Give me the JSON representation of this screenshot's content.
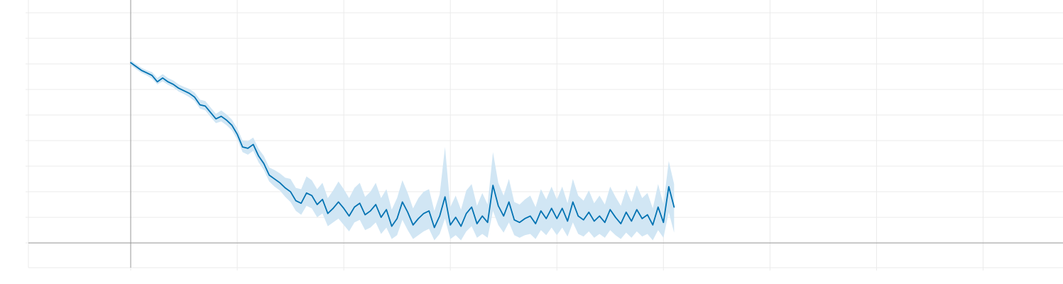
{
  "chart_data": {
    "type": "line",
    "title": "",
    "xlabel": "",
    "ylabel": "",
    "grid": true,
    "legend": "none",
    "xlim": [
      -0.96,
      8.75
    ],
    "ylim": [
      -0.97,
      9.5
    ],
    "x_gridlines": [
      0,
      1,
      2,
      3,
      4,
      5,
      6,
      7,
      8
    ],
    "y_gridlines": [
      0,
      1,
      2,
      3,
      4,
      5,
      6,
      7,
      8,
      9
    ],
    "series": [
      {
        "x": [
          0.0,
          0.05,
          0.1,
          0.15,
          0.2,
          0.25,
          0.3,
          0.35,
          0.4,
          0.45,
          0.5,
          0.55,
          0.6,
          0.65,
          0.7,
          0.75,
          0.8,
          0.85,
          0.9,
          0.95,
          1.0,
          1.05,
          1.1,
          1.15,
          1.2,
          1.25,
          1.3,
          1.35,
          1.4,
          1.45,
          1.5,
          1.55,
          1.6,
          1.65,
          1.7,
          1.75,
          1.8,
          1.85,
          1.9,
          1.95,
          2.0,
          2.05,
          2.1,
          2.15,
          2.2,
          2.25,
          2.3,
          2.35,
          2.4,
          2.45,
          2.5,
          2.55,
          2.6,
          2.65,
          2.7,
          2.75,
          2.8,
          2.85,
          2.9,
          2.95,
          3.0,
          3.05,
          3.1,
          3.15,
          3.2,
          3.25,
          3.3,
          3.35,
          3.4,
          3.45,
          3.5,
          3.55,
          3.6,
          3.65,
          3.7,
          3.75,
          3.8,
          3.85,
          3.9,
          3.95,
          4.0,
          4.05,
          4.1,
          4.15,
          4.2,
          4.25,
          4.3,
          4.35,
          4.4,
          4.45,
          4.5,
          4.55,
          4.6,
          4.65,
          4.7,
          4.75,
          4.8,
          4.85,
          4.9,
          4.95,
          5.0,
          5.05,
          5.1
        ],
        "values": [
          7.05,
          6.9,
          6.75,
          6.65,
          6.55,
          6.3,
          6.45,
          6.3,
          6.2,
          6.05,
          5.95,
          5.85,
          5.7,
          5.4,
          5.35,
          5.1,
          4.85,
          4.95,
          4.8,
          4.6,
          4.25,
          3.75,
          3.7,
          3.85,
          3.4,
          3.1,
          2.65,
          2.5,
          2.35,
          2.15,
          2.0,
          1.65,
          1.55,
          1.95,
          1.85,
          1.5,
          1.7,
          1.15,
          1.35,
          1.6,
          1.35,
          1.05,
          1.4,
          1.55,
          1.1,
          1.25,
          1.5,
          1.0,
          1.3,
          0.65,
          0.95,
          1.6,
          1.2,
          0.7,
          0.95,
          1.15,
          1.25,
          0.6,
          1.05,
          1.8,
          0.7,
          1.0,
          0.65,
          1.15,
          1.4,
          0.75,
          1.05,
          0.8,
          2.25,
          1.45,
          1.05,
          1.6,
          0.9,
          0.8,
          0.95,
          1.05,
          0.75,
          1.25,
          0.95,
          1.35,
          0.95,
          1.35,
          0.85,
          1.6,
          1.05,
          0.9,
          1.2,
          0.85,
          1.05,
          0.8,
          1.3,
          1.0,
          0.75,
          1.2,
          0.85,
          1.3,
          0.95,
          1.1,
          0.7,
          1.4,
          0.8,
          2.2,
          1.4
        ],
        "lower": [
          6.95,
          6.8,
          6.65,
          6.55,
          6.42,
          6.2,
          6.32,
          6.18,
          6.08,
          5.92,
          5.82,
          5.7,
          5.55,
          5.25,
          5.18,
          4.92,
          4.68,
          4.75,
          4.6,
          4.4,
          4.05,
          3.55,
          3.45,
          3.6,
          3.15,
          2.85,
          2.4,
          2.2,
          2.05,
          1.8,
          1.6,
          1.25,
          1.1,
          1.45,
          1.35,
          1.0,
          1.15,
          0.65,
          0.8,
          0.95,
          0.7,
          0.45,
          0.8,
          0.9,
          0.5,
          0.6,
          0.8,
          0.35,
          0.6,
          0.15,
          0.3,
          0.9,
          0.5,
          0.15,
          0.3,
          0.45,
          0.55,
          0.1,
          0.35,
          0.95,
          0.15,
          0.3,
          0.1,
          0.45,
          0.65,
          0.2,
          0.35,
          0.2,
          1.25,
          0.7,
          0.4,
          0.8,
          0.3,
          0.2,
          0.3,
          0.35,
          0.15,
          0.5,
          0.3,
          0.6,
          0.3,
          0.6,
          0.25,
          0.8,
          0.35,
          0.25,
          0.45,
          0.2,
          0.35,
          0.2,
          0.5,
          0.3,
          0.15,
          0.4,
          0.2,
          0.45,
          0.25,
          0.35,
          0.1,
          0.5,
          0.2,
          1.2,
          0.4
        ],
        "upper": [
          7.15,
          7.0,
          6.85,
          6.75,
          6.68,
          6.45,
          6.6,
          6.45,
          6.35,
          6.2,
          6.1,
          6.02,
          5.88,
          5.6,
          5.55,
          5.3,
          5.05,
          5.18,
          5.02,
          4.82,
          4.48,
          4.0,
          3.98,
          4.12,
          3.68,
          3.4,
          2.95,
          2.85,
          2.72,
          2.55,
          2.5,
          2.15,
          2.1,
          2.6,
          2.45,
          2.1,
          2.35,
          1.75,
          2.05,
          2.4,
          2.1,
          1.75,
          2.15,
          2.35,
          1.8,
          2.0,
          2.35,
          1.75,
          2.1,
          1.3,
          1.75,
          2.45,
          1.95,
          1.35,
          1.75,
          2.0,
          2.1,
          1.25,
          1.9,
          3.75,
          1.4,
          1.85,
          1.3,
          2.05,
          2.3,
          1.45,
          1.95,
          1.5,
          3.55,
          2.35,
          1.85,
          2.5,
          1.6,
          1.5,
          1.7,
          1.85,
          1.4,
          2.1,
          1.7,
          2.2,
          1.7,
          2.2,
          1.55,
          2.5,
          1.85,
          1.65,
          2.05,
          1.55,
          1.85,
          1.5,
          2.2,
          1.8,
          1.45,
          2.1,
          1.6,
          2.25,
          1.75,
          1.95,
          1.35,
          2.3,
          1.5,
          3.2,
          2.3
        ]
      }
    ]
  },
  "colors": {
    "line": "#0072b2",
    "band": "#cfe5f3",
    "grid": "#ebebeb",
    "axis": "#999999",
    "background": "#ffffff"
  }
}
